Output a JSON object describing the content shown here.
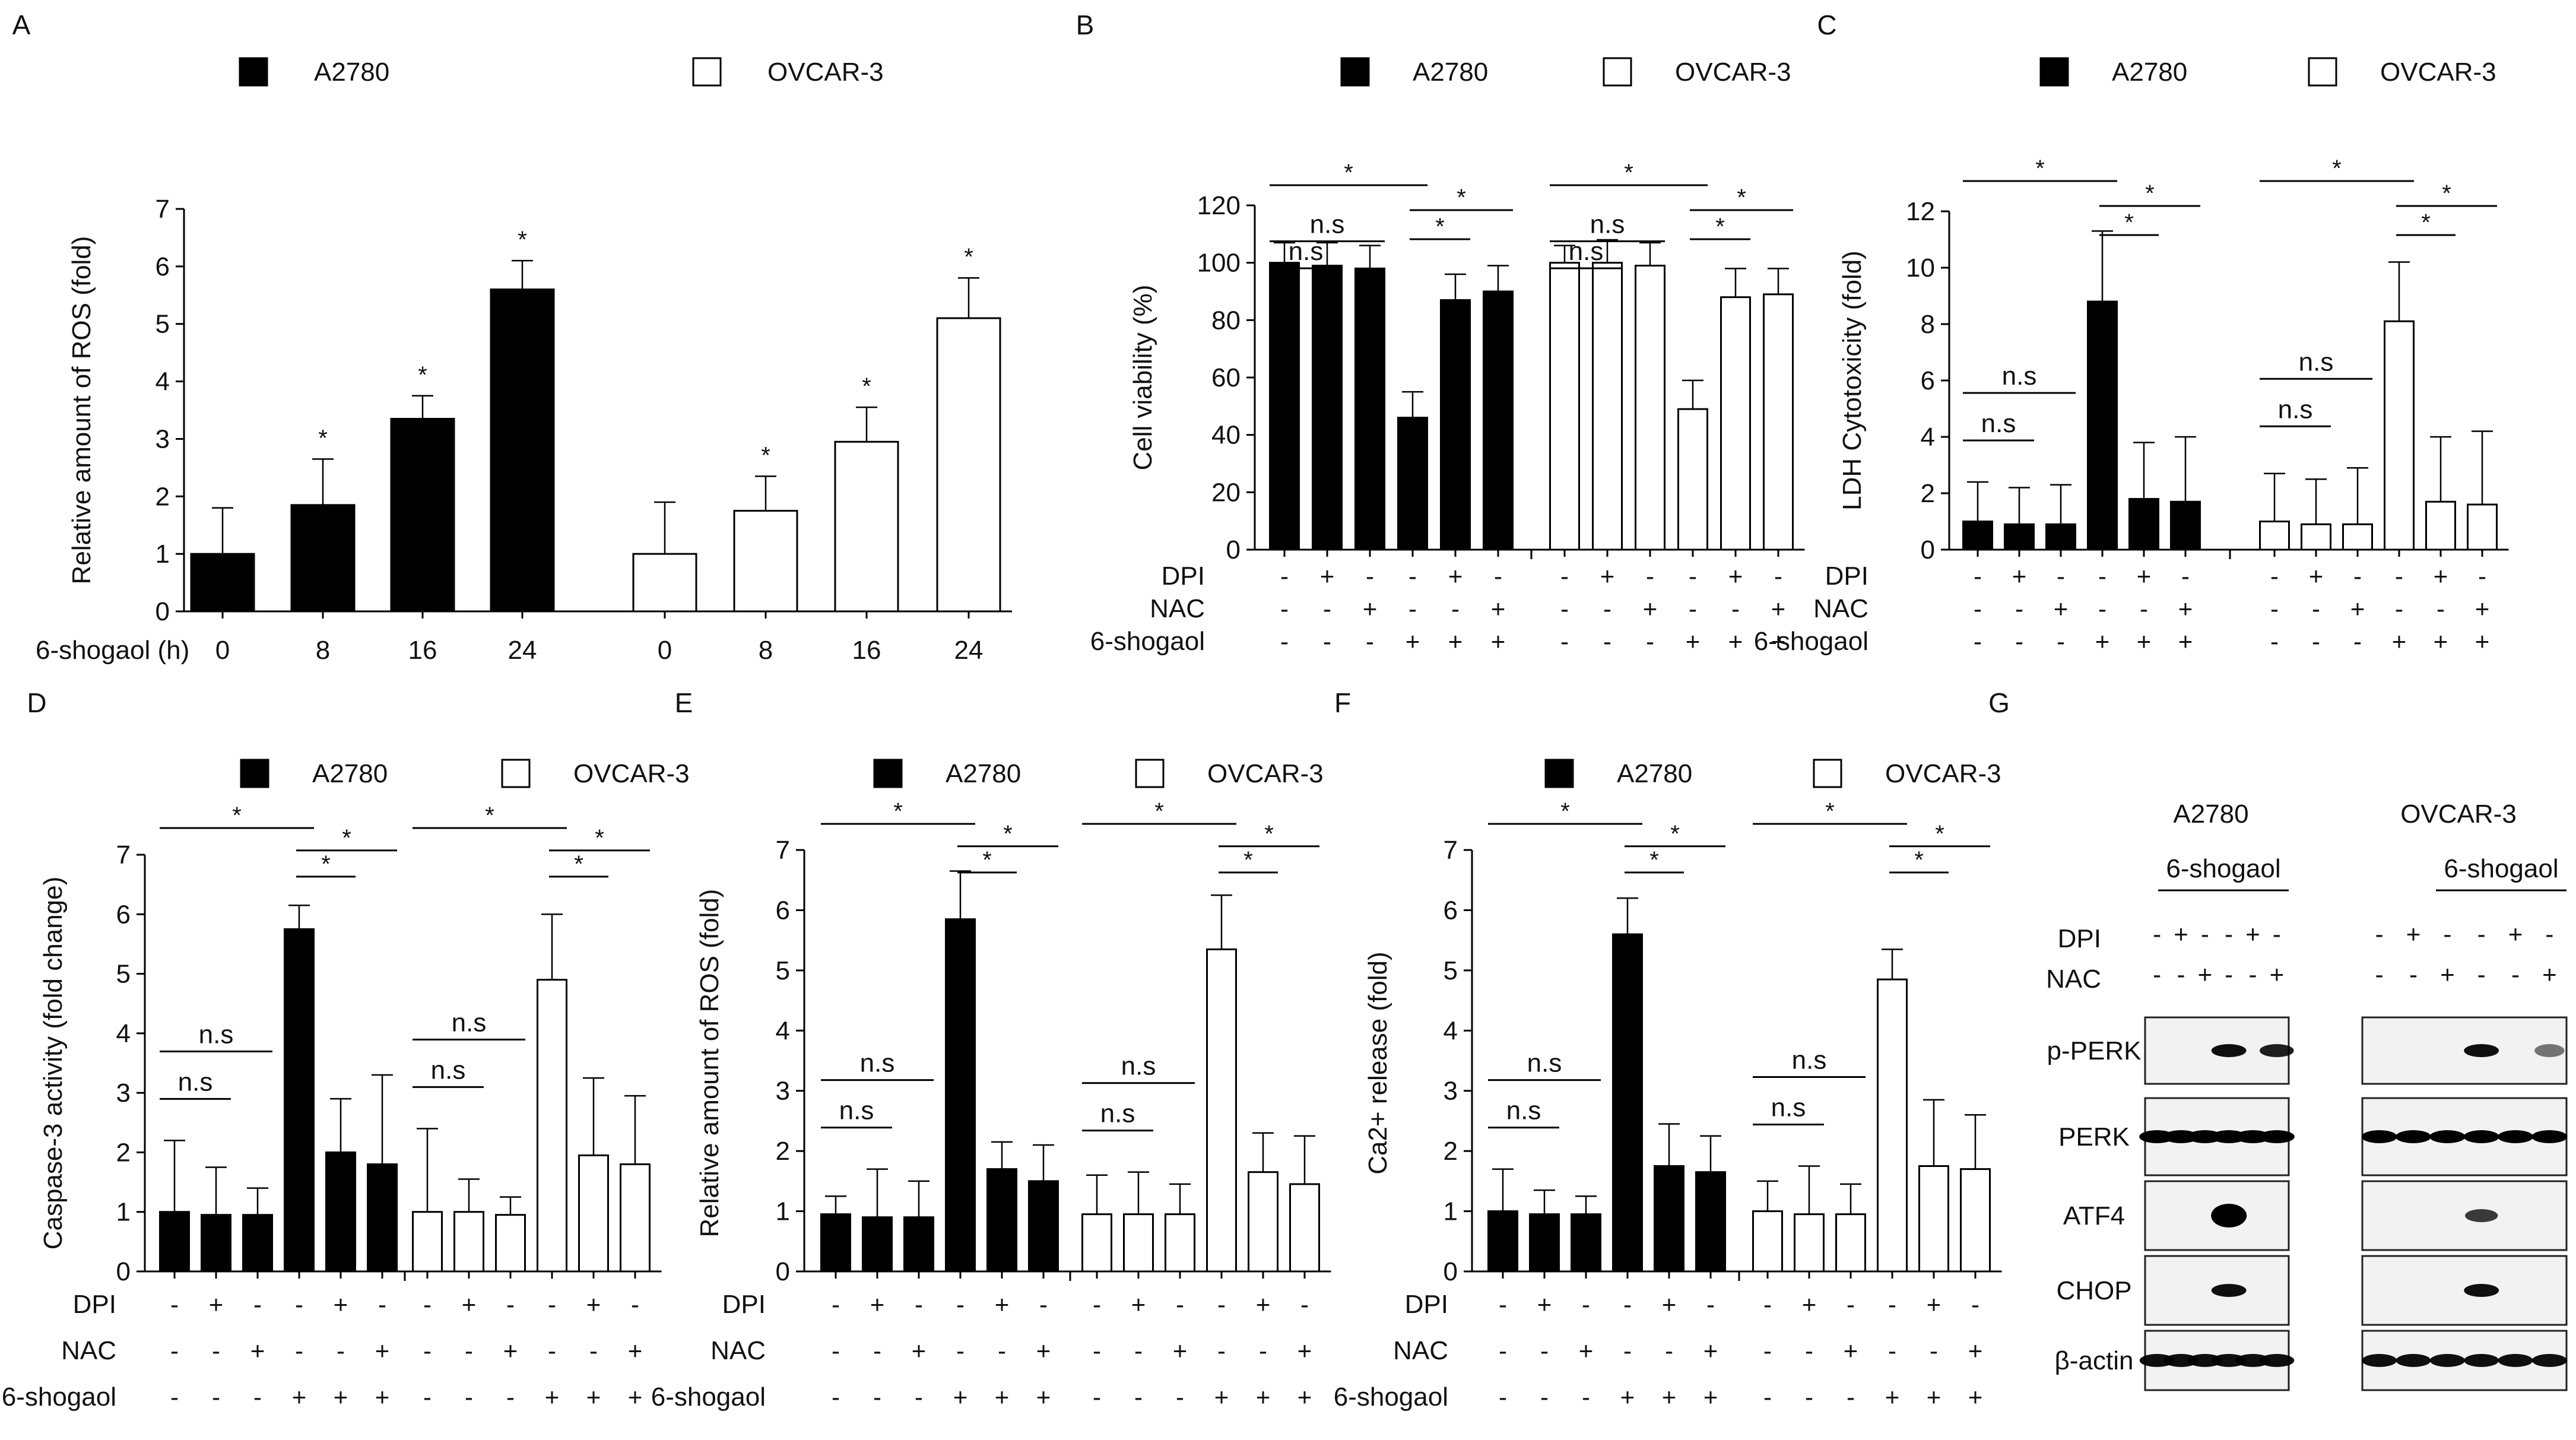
{
  "figure": {
    "groups": [
      "A2780",
      "OVCAR-3"
    ],
    "treatment_labels": [
      "DPI",
      "NAC",
      "6-shogaol"
    ],
    "treatments": {
      "DPI": [
        "-",
        "+",
        "-",
        "-",
        "+",
        "-"
      ],
      "NAC": [
        "-",
        "-",
        "+",
        "-",
        "-",
        "+"
      ],
      "6-shogaol": [
        "-",
        "-",
        "-",
        "+",
        "+",
        "+"
      ]
    }
  },
  "chart_data": [
    {
      "panel": "A",
      "type": "bar",
      "ylabel": "Relative amount of ROS (fold)",
      "xlabel": "6-shogaol (h)",
      "ylim": [
        0,
        7
      ],
      "yticks": [
        0,
        1,
        2,
        3,
        4,
        5,
        6,
        7
      ],
      "legend": [
        "A2780",
        "OVCAR-3"
      ],
      "categories": [
        "0",
        "8",
        "16",
        "24"
      ],
      "series": [
        {
          "name": "A2780",
          "fill": "black",
          "values": [
            1.0,
            1.85,
            3.35,
            5.6
          ],
          "errors": [
            0.8,
            0.8,
            0.4,
            0.5
          ],
          "sig": [
            "",
            "*",
            "*",
            "*"
          ]
        },
        {
          "name": "OVCAR-3",
          "fill": "white",
          "values": [
            1.0,
            1.75,
            2.95,
            5.1
          ],
          "errors": [
            0.9,
            0.6,
            0.6,
            0.7
          ],
          "sig": [
            "",
            "*",
            "*",
            "*"
          ]
        }
      ]
    },
    {
      "panel": "B",
      "type": "bar",
      "ylabel": "Cell viability  (%)",
      "ylim": [
        0,
        120
      ],
      "yticks": [
        0,
        20,
        40,
        60,
        80,
        100,
        120
      ],
      "legend": [
        "A2780",
        "OVCAR-3"
      ],
      "series": [
        {
          "name": "A2780",
          "fill": "black",
          "values": [
            100,
            99,
            98,
            46,
            87,
            90
          ],
          "errors": [
            7,
            8,
            8,
            9,
            9,
            9
          ]
        },
        {
          "name": "OVCAR-3",
          "fill": "white",
          "values": [
            100,
            100,
            99,
            49,
            88,
            89
          ],
          "errors": [
            6,
            8,
            8,
            10,
            10,
            9
          ]
        }
      ],
      "annotations": [
        {
          "group": 0,
          "from": 0,
          "to": 1,
          "level": 0,
          "label": "n.s"
        },
        {
          "group": 0,
          "from": 0,
          "to": 2,
          "level": 1,
          "label": "n.s"
        },
        {
          "group": 0,
          "from": 0,
          "to": 3,
          "level": 2,
          "label": "*"
        },
        {
          "group": 0,
          "from": 3,
          "to": 4,
          "level": 0,
          "label": "*"
        },
        {
          "group": 0,
          "from": 3,
          "to": 5,
          "level": 1,
          "label": "*"
        },
        {
          "group": 1,
          "from": 0,
          "to": 1,
          "level": 0,
          "label": "n.s"
        },
        {
          "group": 1,
          "from": 0,
          "to": 2,
          "level": 1,
          "label": "n.s"
        },
        {
          "group": 1,
          "from": 0,
          "to": 3,
          "level": 2,
          "label": "*"
        },
        {
          "group": 1,
          "from": 3,
          "to": 4,
          "level": 0,
          "label": "*"
        },
        {
          "group": 1,
          "from": 3,
          "to": 5,
          "level": 1,
          "label": "*"
        }
      ]
    },
    {
      "panel": "C",
      "type": "bar",
      "ylabel": "LDH Cytotoxicity (fold)",
      "ylim": [
        0,
        12
      ],
      "yticks": [
        0,
        2,
        4,
        6,
        8,
        10,
        12
      ],
      "legend": [
        "A2780",
        "OVCAR-3"
      ],
      "series": [
        {
          "name": "A2780",
          "fill": "black",
          "values": [
            1.0,
            0.9,
            0.9,
            8.8,
            1.8,
            1.7
          ],
          "errors": [
            1.4,
            1.3,
            1.4,
            2.5,
            2.0,
            2.3
          ]
        },
        {
          "name": "OVCAR-3",
          "fill": "white",
          "values": [
            1.0,
            0.9,
            0.9,
            8.1,
            1.7,
            1.6
          ],
          "errors": [
            1.7,
            1.6,
            2.0,
            2.1,
            2.3,
            2.6
          ]
        }
      ],
      "annotations": [
        {
          "group": 0,
          "from": 0,
          "to": 1,
          "level": 0,
          "label": "n.s"
        },
        {
          "group": 0,
          "from": 0,
          "to": 2,
          "level": 1,
          "label": "n.s"
        },
        {
          "group": 0,
          "from": 0,
          "to": 3,
          "level": 2,
          "label": "*"
        },
        {
          "group": 0,
          "from": 3,
          "to": 4,
          "level": 0,
          "label": "*"
        },
        {
          "group": 0,
          "from": 3,
          "to": 5,
          "level": 1,
          "label": "*"
        },
        {
          "group": 1,
          "from": 0,
          "to": 1,
          "level": 0,
          "label": "n.s"
        },
        {
          "group": 1,
          "from": 0,
          "to": 2,
          "level": 1,
          "label": "n.s"
        },
        {
          "group": 1,
          "from": 0,
          "to": 3,
          "level": 2,
          "label": "*"
        },
        {
          "group": 1,
          "from": 3,
          "to": 4,
          "level": 0,
          "label": "*"
        },
        {
          "group": 1,
          "from": 3,
          "to": 5,
          "level": 1,
          "label": "*"
        }
      ]
    },
    {
      "panel": "D",
      "type": "bar",
      "ylabel": "Caspase-3 activity (fold change)",
      "ylim": [
        0,
        7
      ],
      "yticks": [
        0,
        1,
        2,
        3,
        4,
        5,
        6,
        7
      ],
      "legend": [
        "A2780",
        "OVCAR-3"
      ],
      "series": [
        {
          "name": "A2780",
          "fill": "black",
          "values": [
            1.0,
            0.95,
            0.95,
            5.75,
            2.0,
            1.8
          ],
          "errors": [
            1.2,
            0.8,
            0.45,
            0.4,
            0.9,
            1.5
          ]
        },
        {
          "name": "OVCAR-3",
          "fill": "white",
          "values": [
            1.0,
            1.0,
            0.95,
            4.9,
            1.95,
            1.8
          ],
          "errors": [
            1.4,
            0.55,
            0.3,
            1.1,
            1.3,
            1.15
          ]
        }
      ],
      "annotations": [
        {
          "group": 0,
          "from": 0,
          "to": 1,
          "level": 0,
          "label": "n.s"
        },
        {
          "group": 0,
          "from": 0,
          "to": 2,
          "level": 1,
          "label": "n.s"
        },
        {
          "group": 0,
          "from": 0,
          "to": 3,
          "level": 2,
          "label": "*"
        },
        {
          "group": 0,
          "from": 3,
          "to": 4,
          "level": 0,
          "label": "*"
        },
        {
          "group": 0,
          "from": 3,
          "to": 5,
          "level": 1,
          "label": "*"
        },
        {
          "group": 1,
          "from": 0,
          "to": 1,
          "level": 0,
          "label": "n.s"
        },
        {
          "group": 1,
          "from": 0,
          "to": 2,
          "level": 1,
          "label": "n.s"
        },
        {
          "group": 1,
          "from": 0,
          "to": 3,
          "level": 2,
          "label": "*"
        },
        {
          "group": 1,
          "from": 3,
          "to": 4,
          "level": 0,
          "label": "*"
        },
        {
          "group": 1,
          "from": 3,
          "to": 5,
          "level": 1,
          "label": "*"
        }
      ]
    },
    {
      "panel": "E",
      "type": "bar",
      "ylabel": "Relative amount of ROS (fold)",
      "ylim": [
        0,
        7
      ],
      "yticks": [
        0,
        1,
        2,
        3,
        4,
        5,
        6,
        7
      ],
      "legend": [
        "A2780",
        "OVCAR-3"
      ],
      "series": [
        {
          "name": "A2780",
          "fill": "black",
          "values": [
            0.95,
            0.9,
            0.9,
            5.85,
            1.7,
            1.5
          ],
          "errors": [
            0.3,
            0.8,
            0.6,
            0.8,
            0.45,
            0.6
          ]
        },
        {
          "name": "OVCAR-3",
          "fill": "white",
          "values": [
            0.95,
            0.95,
            0.95,
            5.35,
            1.65,
            1.45
          ],
          "errors": [
            0.65,
            0.7,
            0.5,
            0.9,
            0.65,
            0.8
          ]
        }
      ],
      "annotations": [
        {
          "group": 0,
          "from": 0,
          "to": 1,
          "level": 0,
          "label": "n.s"
        },
        {
          "group": 0,
          "from": 0,
          "to": 2,
          "level": 1,
          "label": "n.s"
        },
        {
          "group": 0,
          "from": 0,
          "to": 3,
          "level": 2,
          "label": "*"
        },
        {
          "group": 0,
          "from": 3,
          "to": 4,
          "level": 0,
          "label": "*"
        },
        {
          "group": 0,
          "from": 3,
          "to": 5,
          "level": 1,
          "label": "*"
        },
        {
          "group": 1,
          "from": 0,
          "to": 1,
          "level": 0,
          "label": "n.s"
        },
        {
          "group": 1,
          "from": 0,
          "to": 2,
          "level": 1,
          "label": "n.s"
        },
        {
          "group": 1,
          "from": 0,
          "to": 3,
          "level": 2,
          "label": "*"
        },
        {
          "group": 1,
          "from": 3,
          "to": 4,
          "level": 0,
          "label": "*"
        },
        {
          "group": 1,
          "from": 3,
          "to": 5,
          "level": 1,
          "label": "*"
        }
      ]
    },
    {
      "panel": "F",
      "type": "bar",
      "ylabel": "Ca2+ release (fold)",
      "ylim": [
        0,
        7
      ],
      "yticks": [
        0,
        1,
        2,
        3,
        4,
        5,
        6,
        7
      ],
      "legend": [
        "A2780",
        "OVCAR-3"
      ],
      "series": [
        {
          "name": "A2780",
          "fill": "black",
          "values": [
            1.0,
            0.95,
            0.95,
            5.6,
            1.75,
            1.65
          ],
          "errors": [
            0.7,
            0.4,
            0.3,
            0.6,
            0.7,
            0.6
          ]
        },
        {
          "name": "OVCAR-3",
          "fill": "white",
          "values": [
            1.0,
            0.95,
            0.95,
            4.85,
            1.75,
            1.7
          ],
          "errors": [
            0.5,
            0.8,
            0.5,
            0.5,
            1.1,
            0.9
          ]
        }
      ],
      "annotations": [
        {
          "group": 0,
          "from": 0,
          "to": 1,
          "level": 0,
          "label": "n.s"
        },
        {
          "group": 0,
          "from": 0,
          "to": 2,
          "level": 1,
          "label": "n.s"
        },
        {
          "group": 0,
          "from": 0,
          "to": 3,
          "level": 2,
          "label": "*"
        },
        {
          "group": 0,
          "from": 3,
          "to": 4,
          "level": 0,
          "label": "*"
        },
        {
          "group": 0,
          "from": 3,
          "to": 5,
          "level": 1,
          "label": "*"
        },
        {
          "group": 1,
          "from": 0,
          "to": 1,
          "level": 0,
          "label": "n.s"
        },
        {
          "group": 1,
          "from": 0,
          "to": 2,
          "level": 1,
          "label": "n.s"
        },
        {
          "group": 1,
          "from": 0,
          "to": 3,
          "level": 2,
          "label": "*"
        },
        {
          "group": 1,
          "from": 3,
          "to": 4,
          "level": 0,
          "label": "*"
        },
        {
          "group": 1,
          "from": 3,
          "to": 5,
          "level": 1,
          "label": "*"
        }
      ]
    }
  ],
  "western_blot": {
    "panel": "G",
    "cell_lines": [
      "A2780",
      "OVCAR-3"
    ],
    "treatment_label": "6-shogaol",
    "rows": [
      "DPI",
      "NAC"
    ],
    "lanes": {
      "DPI": [
        "-",
        "+",
        "-",
        "-",
        "+",
        "-"
      ],
      "NAC": [
        "-",
        "-",
        "+",
        "-",
        "-",
        "+"
      ]
    },
    "proteins": [
      "p-PERK",
      "PERK",
      "ATF4",
      "CHOP",
      "β-actin"
    ],
    "band_intensity": {
      "p-PERK": [
        [
          0,
          0,
          0,
          0.9,
          0,
          0.8
        ],
        [
          0,
          0,
          0,
          0.9,
          0,
          0.2
        ]
      ],
      "PERK": [
        [
          1,
          1,
          1,
          1,
          1,
          1
        ],
        [
          1,
          1,
          1,
          1,
          1,
          1
        ]
      ],
      "ATF4": [
        [
          0,
          0,
          0,
          1,
          0,
          0
        ],
        [
          0,
          0,
          0,
          0.6,
          0,
          0
        ]
      ],
      "CHOP": [
        [
          0,
          0,
          0,
          0.9,
          0,
          0
        ],
        [
          0,
          0,
          0,
          0.9,
          0,
          0
        ]
      ],
      "β-actin": [
        [
          0.9,
          0.9,
          0.9,
          0.9,
          0.9,
          0.9
        ],
        [
          0.9,
          0.9,
          0.9,
          0.9,
          0.9,
          0.9
        ]
      ]
    }
  }
}
